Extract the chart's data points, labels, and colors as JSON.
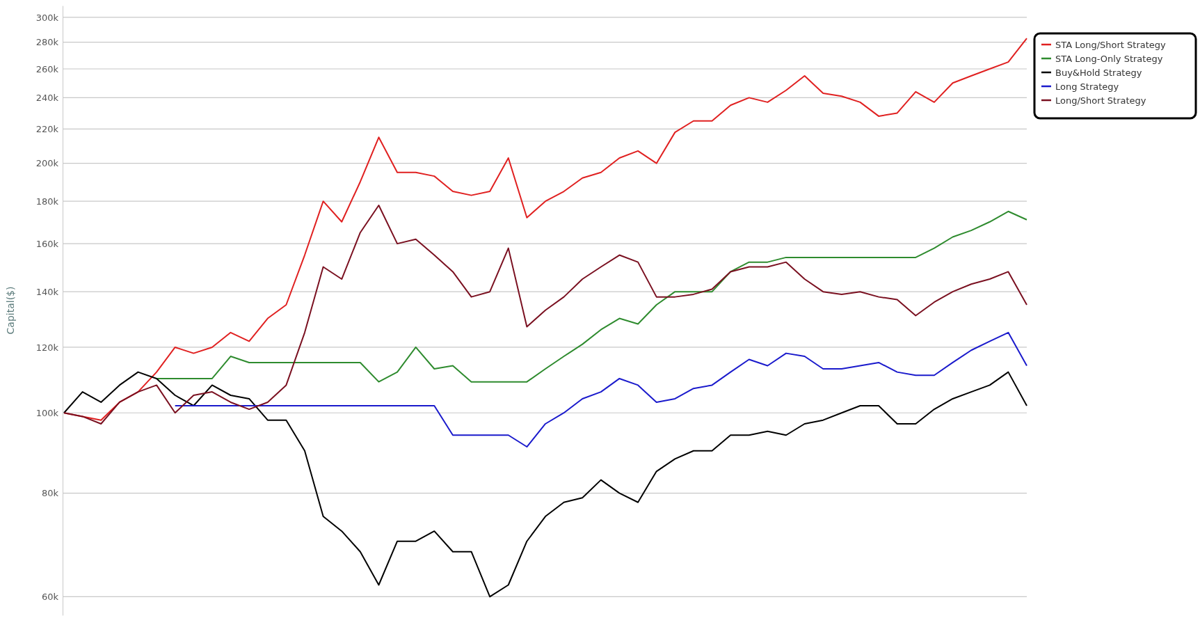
{
  "chart_data": {
    "type": "line",
    "ylabel": "Capital($)",
    "log": true,
    "grid": "y",
    "legend": "top right",
    "tick_labels": "y",
    "categories": [
      null,
      null,
      null,
      null,
      null,
      null,
      null,
      null,
      null,
      null,
      null,
      null,
      null,
      null,
      null,
      null,
      null,
      null,
      null,
      null,
      null,
      null,
      null,
      null,
      null,
      null,
      null,
      null,
      null,
      null,
      null,
      null,
      null,
      null,
      null,
      null,
      null,
      null,
      null,
      null,
      null,
      null,
      null,
      null,
      null,
      null,
      null,
      null,
      null,
      null,
      null,
      null,
      null
    ],
    "ylim": [
      57,
      310
    ],
    "yticks": [
      {
        "value": 60,
        "label": "60k"
      },
      {
        "value": 80,
        "label": "80k"
      },
      {
        "value": 100,
        "label": "100k"
      },
      {
        "value": 120,
        "label": "120k"
      },
      {
        "value": 140,
        "label": "140k"
      },
      {
        "value": 160,
        "label": "160k"
      },
      {
        "value": 180,
        "label": "180k"
      },
      {
        "value": 200,
        "label": "200k"
      },
      {
        "value": 220,
        "label": "220k"
      },
      {
        "value": 240,
        "label": "240k"
      },
      {
        "value": 260,
        "label": "260k"
      },
      {
        "value": 280,
        "label": "280k"
      },
      {
        "value": 300,
        "label": "300k"
      }
    ],
    "series": [
      {
        "name": "STA Long/Short Strategy",
        "color": "#e02020",
        "values": [
          100,
          99,
          98,
          103,
          106,
          112,
          120,
          118,
          120,
          125,
          122,
          130,
          135,
          155,
          180,
          170,
          190,
          215,
          195,
          195,
          193,
          185,
          183,
          185,
          203,
          172,
          180,
          185,
          192,
          195,
          203,
          207,
          200,
          218,
          225,
          225,
          235,
          240,
          237,
          245,
          255,
          243,
          241,
          237,
          228,
          230,
          244,
          237,
          250,
          255,
          260,
          265,
          283
        ]
      },
      {
        "name": "STA Long-Only Strategy",
        "color": "#2e8b2e",
        "values": [
          null,
          null,
          null,
          null,
          null,
          110,
          110,
          110,
          110,
          117,
          115,
          115,
          115,
          115,
          115,
          115,
          115,
          109,
          112,
          120,
          113,
          114,
          109,
          109,
          109,
          109,
          113,
          117,
          121,
          126,
          130,
          128,
          135,
          140,
          140,
          140,
          148,
          152,
          152,
          154,
          154,
          154,
          154,
          154,
          154,
          154,
          154,
          158,
          163,
          166,
          170,
          175,
          171
        ]
      },
      {
        "name": "Buy&Hold Strategy",
        "color": "#000000",
        "values": [
          100,
          106,
          103,
          108,
          112,
          110,
          105,
          102,
          108,
          105,
          104,
          98,
          98,
          90,
          75,
          72,
          68,
          62,
          70,
          70,
          72,
          68,
          68,
          60,
          62,
          70,
          75,
          78,
          79,
          83,
          80,
          78,
          85,
          88,
          90,
          90,
          94,
          94,
          95,
          94,
          97,
          98,
          100,
          102,
          102,
          97,
          97,
          101,
          104,
          106,
          108,
          112,
          102
        ]
      },
      {
        "name": "Long Strategy",
        "color": "#1a1acc",
        "values": [
          null,
          null,
          null,
          null,
          null,
          null,
          102,
          102,
          102,
          102,
          102,
          102,
          102,
          102,
          102,
          102,
          102,
          102,
          102,
          102,
          102,
          94,
          94,
          94,
          94,
          91,
          97,
          100,
          104,
          106,
          110,
          108,
          103,
          104,
          107,
          108,
          112,
          116,
          114,
          118,
          117,
          113,
          113,
          114,
          115,
          112,
          111,
          111,
          115,
          119,
          122,
          125,
          114
        ]
      },
      {
        "name": "Long/Short Strategy",
        "color": "#7a1020",
        "values": [
          100,
          99,
          97,
          103,
          106,
          108,
          100,
          105,
          106,
          103,
          101,
          103,
          108,
          125,
          150,
          145,
          165,
          178,
          160,
          162,
          155,
          148,
          138,
          140,
          158,
          127,
          133,
          138,
          145,
          150,
          155,
          152,
          138,
          138,
          139,
          141,
          148,
          150,
          150,
          152,
          145,
          140,
          139,
          140,
          138,
          137,
          131,
          136,
          140,
          143,
          145,
          148,
          135
        ]
      }
    ]
  }
}
